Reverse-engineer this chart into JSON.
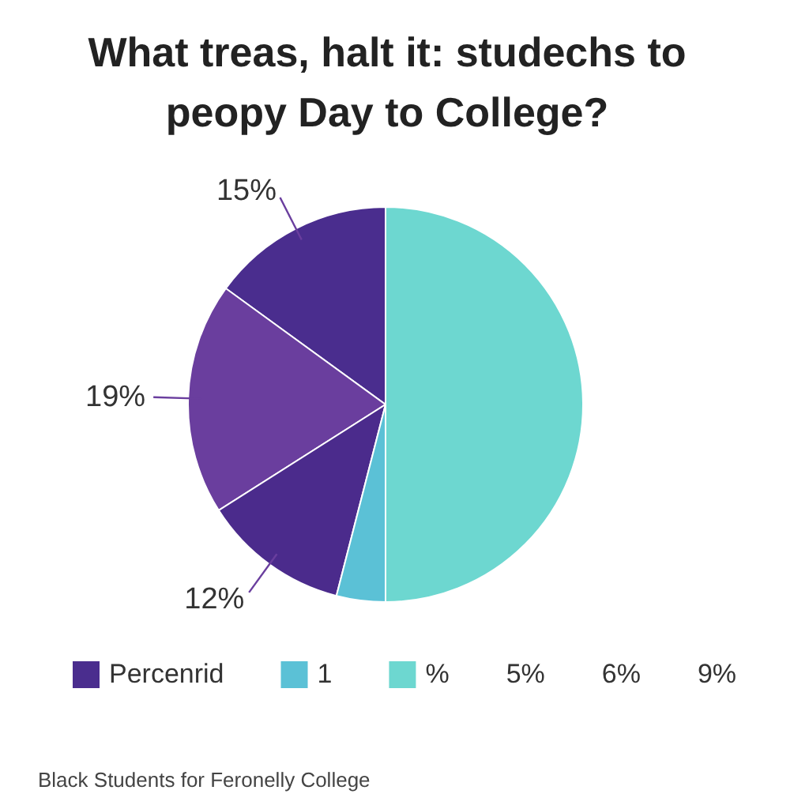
{
  "chart_data": {
    "type": "pie",
    "title": "What treas, halt it: studechs to peopy Day to College?",
    "categories": [
      "Percenrid",
      null,
      null,
      "1",
      "%"
    ],
    "values": [
      15,
      19,
      12,
      4,
      50
    ],
    "colors": [
      "#4a2d8e",
      "#6a3e9e",
      "#4b2b8c",
      "#5bc1d6",
      "#6dd7d0"
    ],
    "value_labels": [
      "15%",
      "19%",
      "12%",
      null,
      null
    ],
    "legend": "bottom",
    "annotations": [
      "5%",
      "6%",
      "9%",
      "Black Students for Feronelly College"
    ]
  }
}
